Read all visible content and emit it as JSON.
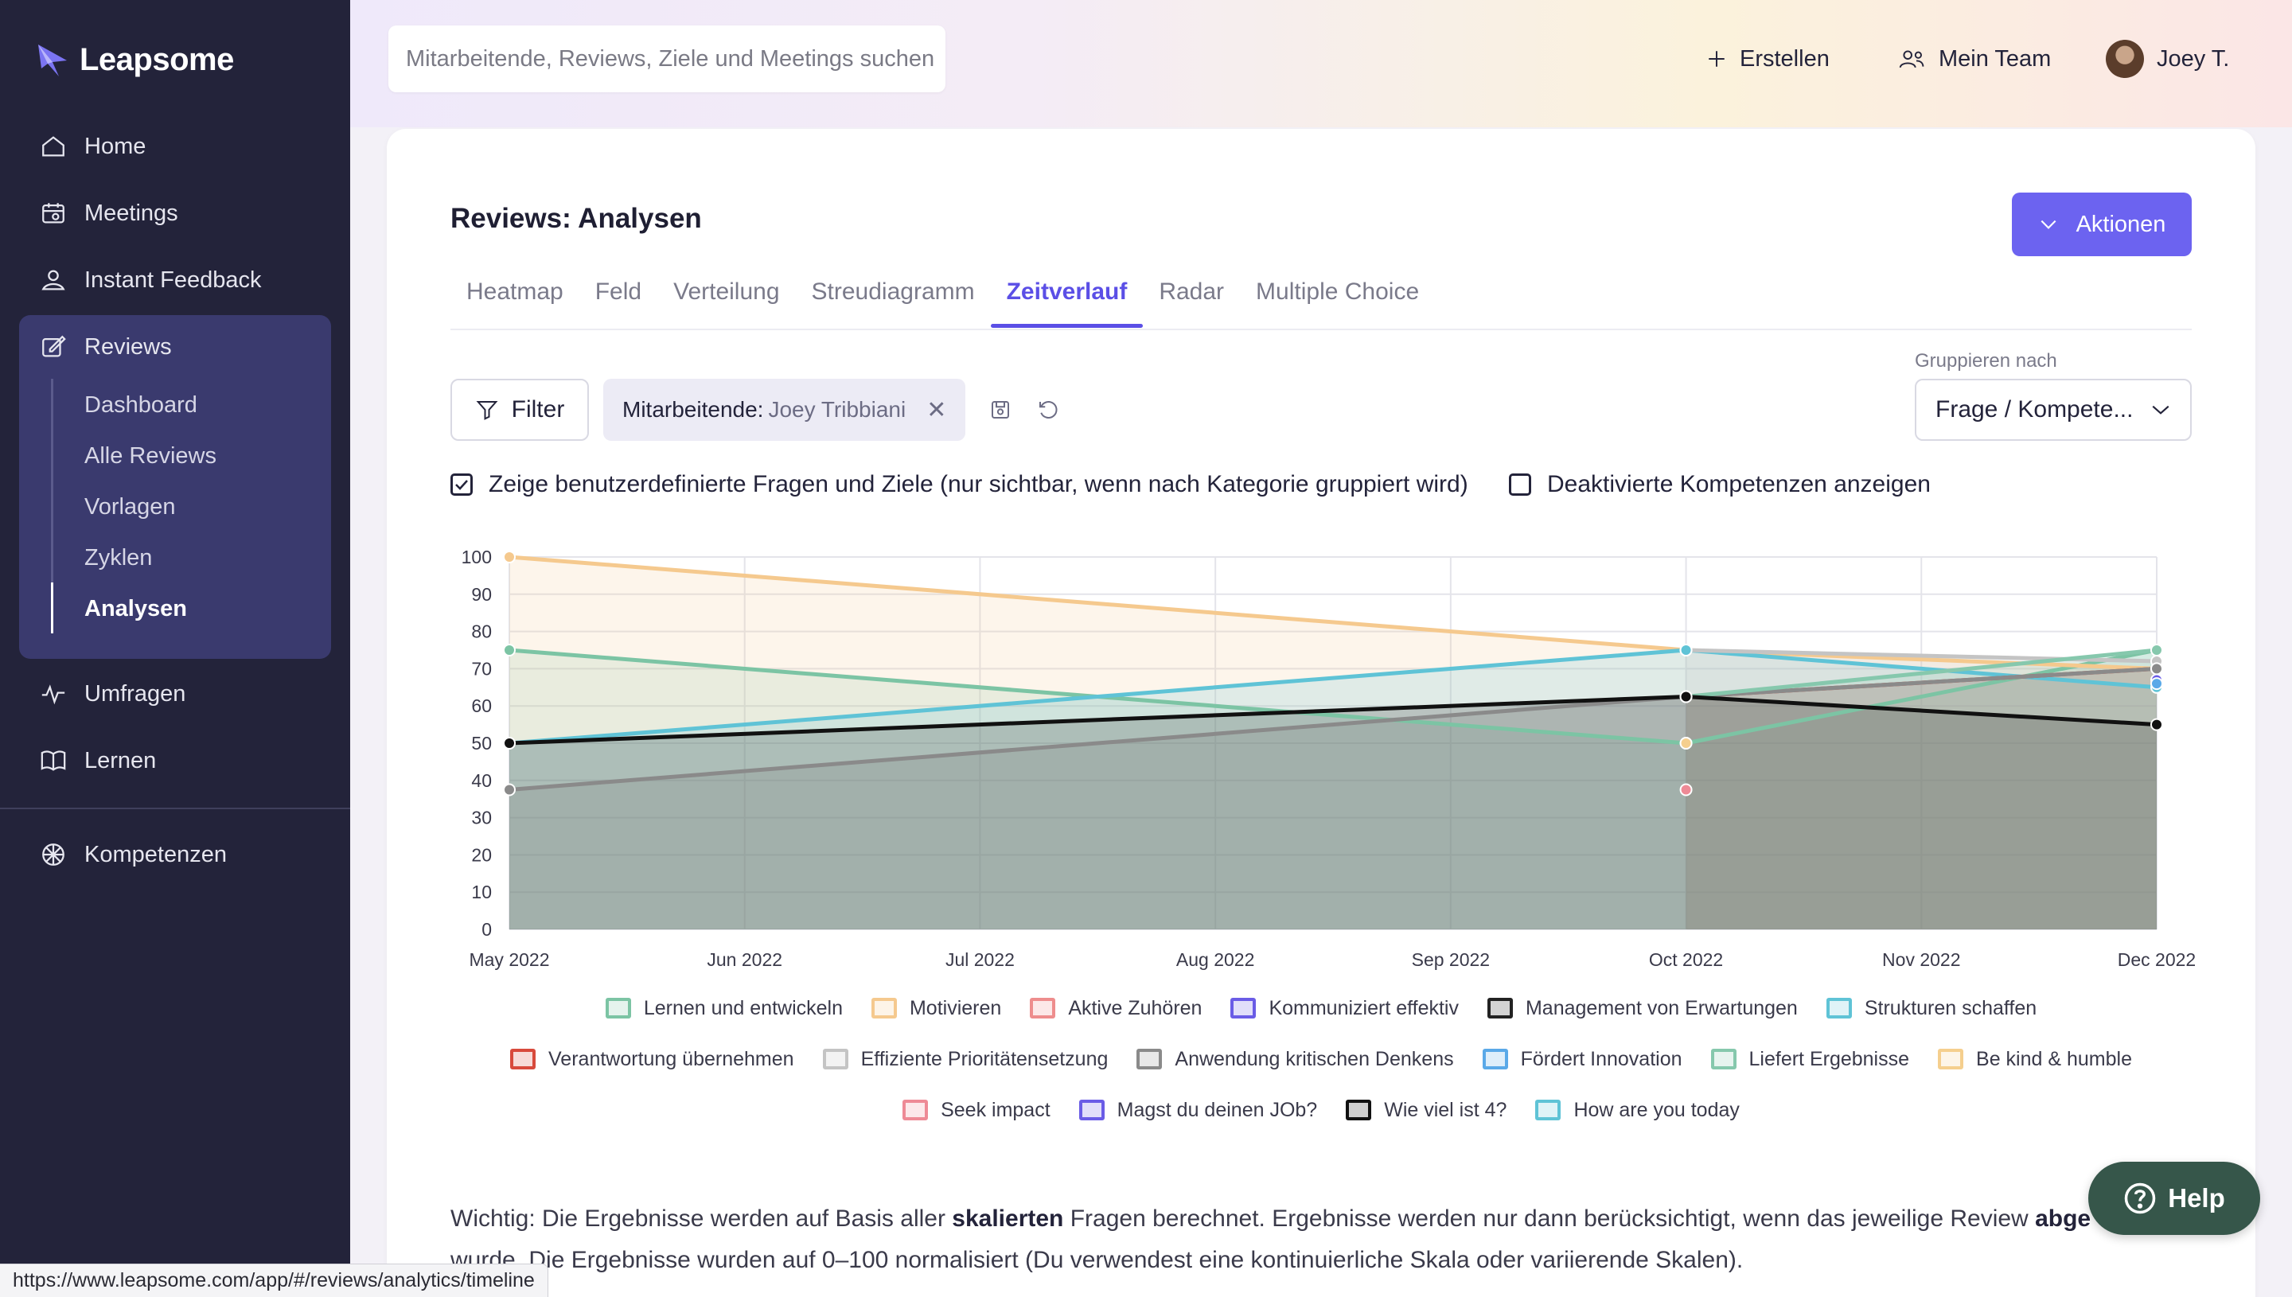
{
  "app": {
    "name": "Leapsome"
  },
  "sidebar": {
    "items": [
      {
        "label": "Home",
        "icon": "home-icon"
      },
      {
        "label": "Meetings",
        "icon": "meetings-icon"
      },
      {
        "label": "Instant Feedback",
        "icon": "feedback-icon"
      },
      {
        "label": "Reviews",
        "icon": "reviews-icon"
      },
      {
        "label": "Umfragen",
        "icon": "pulse-icon"
      },
      {
        "label": "Lernen",
        "icon": "book-icon"
      },
      {
        "label": "Kompetenzen",
        "icon": "competencies-icon"
      }
    ],
    "reviews_sub": [
      "Dashboard",
      "Alle Reviews",
      "Vorlagen",
      "Zyklen",
      "Analysen"
    ],
    "active_sub": "Analysen"
  },
  "topbar": {
    "search_placeholder": "Mitarbeitende, Reviews, Ziele und Meetings suchen",
    "create_label": "Erstellen",
    "team_label": "Mein Team",
    "user_label": "Joey T."
  },
  "page": {
    "title": "Reviews: Analysen",
    "actions_label": "Aktionen",
    "tabs": [
      "Heatmap",
      "Feld",
      "Verteilung",
      "Streudiagramm",
      "Zeitverlauf",
      "Radar",
      "Multiple Choice"
    ],
    "active_tab": "Zeitverlauf",
    "filter_label": "Filter",
    "chip_key": "Mitarbeitende:",
    "chip_value": "Joey Tribbiani",
    "group_label": "Gruppieren nach",
    "group_value": "Frage / Kompete...",
    "check1": {
      "label": "Zeige benutzerdefinierte Fragen und Ziele (nur sichtbar, wenn nach Kategorie gruppiert wird)",
      "checked": true
    },
    "check2": {
      "label": "Deaktivierte Kompetenzen anzeigen",
      "checked": false
    },
    "note_pre": "Wichtig: Die Ergebnisse werden auf Basis aller ",
    "note_bold": "skalierten",
    "note_mid": " Fragen berechnet. Ergebnisse werden nur dann berücksichtigt, wenn das jeweilige Review ",
    "note_bold2": "abge",
    "note_line2": "wurde. Die Ergebnisse wurden auf 0–100 normalisiert (Du verwendest eine kontinuierliche Skala oder variierende Skalen).",
    "help_label": "Help"
  },
  "statusbar": {
    "url": "https://www.leapsome.com/app/#/reviews/analytics/timeline"
  },
  "chart_data": {
    "type": "area",
    "x": [
      "May 2022",
      "Jun 2022",
      "Jul 2022",
      "Aug 2022",
      "Sep 2022",
      "Oct 2022",
      "Nov 2022",
      "Dec 2022"
    ],
    "x_months": [
      0,
      1,
      2,
      3,
      4,
      5,
      6,
      7
    ],
    "ylim": [
      0,
      100
    ],
    "yticks": [
      0,
      10,
      20,
      30,
      40,
      50,
      60,
      70,
      80,
      90,
      100
    ],
    "grid": true,
    "legend_position": "bottom",
    "series": [
      {
        "name": "Lernen und entwickeln",
        "color": "#7cc4a4",
        "points": [
          [
            0,
            75
          ],
          [
            5,
            50
          ],
          [
            7,
            75
          ]
        ]
      },
      {
        "name": "Motivieren",
        "color": "#f5c98e",
        "points": [
          [
            0,
            100
          ],
          [
            5,
            75
          ],
          [
            7,
            70
          ]
        ]
      },
      {
        "name": "Aktive Zuhören",
        "color": "#ee8d8d",
        "points": []
      },
      {
        "name": "Kommuniziert effektiv",
        "color": "#6a5ce6",
        "points": [
          [
            7,
            67
          ]
        ]
      },
      {
        "name": "Management von Erwartungen",
        "color": "#222222",
        "points": []
      },
      {
        "name": "Strukturen schaffen",
        "color": "#5fc3d6",
        "points": [
          [
            0,
            50
          ],
          [
            5,
            75
          ],
          [
            7,
            65
          ]
        ]
      },
      {
        "name": "Verantwortung übernehmen",
        "color": "#d84a3c",
        "points": [
          [
            5,
            62.5
          ],
          [
            7,
            70
          ]
        ]
      },
      {
        "name": "Effiziente Prioritätensetzung",
        "color": "#c4c4c4",
        "points": [
          [
            5,
            75
          ],
          [
            7,
            72
          ]
        ]
      },
      {
        "name": "Anwendung kritischen Denkens",
        "color": "#8a8a8a",
        "points": [
          [
            0,
            37.5
          ],
          [
            5,
            62.5
          ],
          [
            7,
            70
          ]
        ]
      },
      {
        "name": "Fördert Innovation",
        "color": "#5aa9e8",
        "points": [
          [
            7,
            66
          ]
        ]
      },
      {
        "name": "Liefert Ergebnisse",
        "color": "#86c8ad",
        "points": [
          [
            5,
            62.5
          ],
          [
            7,
            75
          ]
        ]
      },
      {
        "name": "Be kind & humble",
        "color": "#f5cf8e",
        "points": [
          [
            5,
            50
          ]
        ]
      },
      {
        "name": "Seek impact",
        "color": "#ee8a96",
        "points": [
          [
            5,
            37.5
          ]
        ]
      },
      {
        "name": "Magst du deinen JOb?",
        "color": "#6a5ce6",
        "points": []
      },
      {
        "name": "Wie viel ist 4?",
        "color": "#111111",
        "points": [
          [
            0,
            50
          ],
          [
            5,
            62.5
          ],
          [
            7,
            55
          ]
        ]
      },
      {
        "name": "How are you today",
        "color": "#5fc3d6",
        "points": [
          [
            5,
            75
          ]
        ]
      }
    ]
  }
}
